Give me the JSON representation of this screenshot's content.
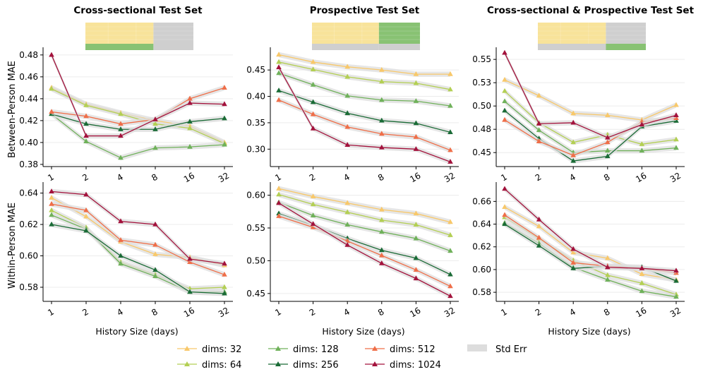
{
  "figure": {
    "ylabel_top": "Between-Person MAE",
    "ylabel_bottom": "Within-Person MAE",
    "xlabel": "History Size (days)"
  },
  "colors": {
    "dims: 32": "#f8c86a",
    "dims: 64": "#b3cf53",
    "dims: 128": "#6fb15a",
    "dims: 256": "#1a6b36",
    "dims: 512": "#ef6e48",
    "dims: 1024": "#a3123c",
    "stderr": "#dddddd",
    "inset_yellow": "#f8e39a",
    "inset_green": "#88c273",
    "inset_gray": "#cfcfcf"
  },
  "legend": {
    "items": [
      "dims: 32",
      "dims: 64",
      "dims: 128",
      "dims: 256",
      "dims: 512",
      "dims: 1024"
    ],
    "stderr_label": "Std Err"
  },
  "chart_data": [
    {
      "type": "line",
      "panel": "top-left",
      "title": "Cross-sectional Test Set",
      "x": [
        1,
        2,
        4,
        8,
        16,
        32
      ],
      "xticklabels": [
        "1",
        "2",
        "4",
        "8",
        "16",
        "32"
      ],
      "xlabel": "History Size (days)",
      "ylabel": "Between-Person MAE",
      "ylim": [
        0.378,
        0.487
      ],
      "yticks": [
        0.38,
        0.4,
        0.42,
        0.44,
        0.46,
        0.48
      ],
      "yticklabels": [
        "0.38",
        "0.40",
        "0.42",
        "0.44",
        "0.46",
        "0.48"
      ],
      "inset": [
        {
          "color": "inset_yellow",
          "share": 0.63,
          "stripe": "inset_green"
        },
        {
          "color": "inset_gray",
          "share": 0.37,
          "stripe": "inset_gray"
        }
      ],
      "series": [
        {
          "name": "dims: 32",
          "values": [
            0.45,
            0.435,
            0.427,
            0.42,
            0.415,
            0.4
          ]
        },
        {
          "name": "dims: 64",
          "values": [
            0.449,
            0.434,
            0.426,
            0.417,
            0.413,
            0.399
          ]
        },
        {
          "name": "dims: 128",
          "values": [
            0.426,
            0.401,
            0.386,
            0.395,
            0.396,
            0.398
          ]
        },
        {
          "name": "dims: 256",
          "values": [
            0.426,
            0.417,
            0.412,
            0.412,
            0.419,
            0.422
          ]
        },
        {
          "name": "dims: 512",
          "values": [
            0.428,
            0.424,
            0.417,
            0.421,
            0.44,
            0.45
          ]
        },
        {
          "name": "dims: 1024",
          "values": [
            0.48,
            0.406,
            0.406,
            0.421,
            0.436,
            0.435
          ]
        }
      ]
    },
    {
      "type": "line",
      "panel": "top-middle",
      "title": "Prospective Test Set",
      "x": [
        1,
        2,
        4,
        8,
        16,
        32
      ],
      "xticklabels": [
        "1",
        "2",
        "4",
        "8",
        "16",
        "32"
      ],
      "xlabel": "History Size (days)",
      "ylabel": "",
      "ylim": [
        0.267,
        0.493
      ],
      "yticks": [
        0.3,
        0.35,
        0.4,
        0.45
      ],
      "yticklabels": [
        "0.30",
        "0.35",
        "0.40",
        "0.45"
      ],
      "inset": [
        {
          "color": "inset_yellow",
          "share": 0.62,
          "stripe": "inset_gray"
        },
        {
          "color": "inset_green",
          "share": 0.38,
          "stripe": "inset_gray"
        }
      ],
      "series": [
        {
          "name": "dims: 32",
          "values": [
            0.479,
            0.465,
            0.456,
            0.45,
            0.442,
            0.442
          ]
        },
        {
          "name": "dims: 64",
          "values": [
            0.465,
            0.451,
            0.437,
            0.428,
            0.425,
            0.413
          ]
        },
        {
          "name": "dims: 128",
          "values": [
            0.444,
            0.422,
            0.401,
            0.393,
            0.391,
            0.382
          ]
        },
        {
          "name": "dims: 256",
          "values": [
            0.411,
            0.389,
            0.368,
            0.354,
            0.349,
            0.332
          ]
        },
        {
          "name": "dims: 512",
          "values": [
            0.393,
            0.366,
            0.342,
            0.329,
            0.323,
            0.298
          ]
        },
        {
          "name": "dims: 1024",
          "values": [
            0.455,
            0.339,
            0.308,
            0.303,
            0.3,
            0.276
          ]
        }
      ]
    },
    {
      "type": "line",
      "panel": "top-right",
      "title": "Cross-sectional & Prospective Test Set",
      "x": [
        1,
        2,
        4,
        8,
        16,
        32
      ],
      "xticklabels": [
        "1",
        "2",
        "4",
        "8",
        "16",
        "32"
      ],
      "xlabel": "History Size (days)",
      "ylabel": "",
      "ylim": [
        0.435,
        0.563
      ],
      "yticks": [
        0.45,
        0.475,
        0.5,
        0.525,
        0.55
      ],
      "yticklabels": [
        "0.45",
        "0.48",
        "0.50",
        "0.53",
        "0.55"
      ],
      "inset": [
        {
          "color": "inset_yellow",
          "share": 0.63,
          "stripe": "inset_gray"
        },
        {
          "color": "inset_gray",
          "share": 0.37,
          "stripe": "inset_green"
        }
      ],
      "series": [
        {
          "name": "dims: 32",
          "values": [
            0.528,
            0.511,
            0.492,
            0.49,
            0.485,
            0.501
          ]
        },
        {
          "name": "dims: 64",
          "values": [
            0.516,
            0.482,
            0.461,
            0.469,
            0.459,
            0.464
          ]
        },
        {
          "name": "dims: 128",
          "values": [
            0.505,
            0.474,
            0.45,
            0.452,
            0.452,
            0.455
          ]
        },
        {
          "name": "dims: 256",
          "values": [
            0.495,
            0.465,
            0.441,
            0.446,
            0.478,
            0.484
          ]
        },
        {
          "name": "dims: 512",
          "values": [
            0.485,
            0.462,
            0.447,
            0.461,
            0.483,
            0.487
          ]
        },
        {
          "name": "dims: 1024",
          "values": [
            0.557,
            0.481,
            0.482,
            0.466,
            0.48,
            0.49
          ]
        }
      ]
    },
    {
      "type": "line",
      "panel": "bottom-left",
      "title": "",
      "x": [
        1,
        2,
        4,
        8,
        16,
        32
      ],
      "xticklabels": [
        "1",
        "2",
        "4",
        "8",
        "16",
        "32"
      ],
      "xlabel": "History Size (days)",
      "ylabel": "Within-Person MAE",
      "ylim": [
        0.571,
        0.647
      ],
      "yticks": [
        0.58,
        0.6,
        0.62,
        0.64
      ],
      "yticklabels": [
        "0.58",
        "0.60",
        "0.62",
        "0.64"
      ],
      "inset": null,
      "series": [
        {
          "name": "dims: 32",
          "values": [
            0.637,
            0.625,
            0.609,
            0.601,
            0.599,
            0.594
          ]
        },
        {
          "name": "dims: 64",
          "values": [
            0.629,
            0.618,
            0.596,
            0.588,
            0.579,
            0.58
          ]
        },
        {
          "name": "dims: 128",
          "values": [
            0.626,
            0.617,
            0.595,
            0.587,
            0.577,
            0.577
          ]
        },
        {
          "name": "dims: 256",
          "values": [
            0.62,
            0.616,
            0.6,
            0.591,
            0.577,
            0.576
          ]
        },
        {
          "name": "dims: 512",
          "values": [
            0.633,
            0.629,
            0.61,
            0.607,
            0.596,
            0.588
          ]
        },
        {
          "name": "dims: 1024",
          "values": [
            0.641,
            0.639,
            0.622,
            0.62,
            0.598,
            0.595
          ]
        }
      ]
    },
    {
      "type": "line",
      "panel": "bottom-middle",
      "title": "",
      "x": [
        1,
        2,
        4,
        8,
        16,
        32
      ],
      "xticklabels": [
        "1",
        "2",
        "4",
        "8",
        "16",
        "32"
      ],
      "xlabel": "History Size (days)",
      "ylabel": "",
      "ylim": [
        0.438,
        0.62
      ],
      "yticks": [
        0.45,
        0.5,
        0.55,
        0.6
      ],
      "yticklabels": [
        "0.45",
        "0.50",
        "0.55",
        "0.60"
      ],
      "inset": null,
      "series": [
        {
          "name": "dims: 32",
          "values": [
            0.61,
            0.598,
            0.588,
            0.578,
            0.572,
            0.559
          ]
        },
        {
          "name": "dims: 64",
          "values": [
            0.601,
            0.586,
            0.574,
            0.562,
            0.555,
            0.539
          ]
        },
        {
          "name": "dims: 128",
          "values": [
            0.589,
            0.569,
            0.555,
            0.544,
            0.534,
            0.515
          ]
        },
        {
          "name": "dims: 256",
          "values": [
            0.572,
            0.554,
            0.534,
            0.516,
            0.504,
            0.479
          ]
        },
        {
          "name": "dims: 512",
          "values": [
            0.568,
            0.551,
            0.53,
            0.508,
            0.486,
            0.461
          ]
        },
        {
          "name": "dims: 1024",
          "values": [
            0.588,
            0.556,
            0.524,
            0.496,
            0.473,
            0.446
          ]
        }
      ]
    },
    {
      "type": "line",
      "panel": "bottom-right",
      "title": "",
      "x": [
        1,
        2,
        4,
        8,
        16,
        32
      ],
      "xticklabels": [
        "1",
        "2",
        "4",
        "8",
        "16",
        "32"
      ],
      "xlabel": "History Size (days)",
      "ylabel": "",
      "ylim": [
        0.572,
        0.677
      ],
      "yticks": [
        0.58,
        0.6,
        0.62,
        0.64,
        0.66
      ],
      "yticklabels": [
        "0.58",
        "0.60",
        "0.62",
        "0.64",
        "0.66"
      ],
      "inset": null,
      "series": [
        {
          "name": "dims: 32",
          "values": [
            0.655,
            0.638,
            0.615,
            0.61,
            0.596,
            0.591
          ]
        },
        {
          "name": "dims: 64",
          "values": [
            0.646,
            0.627,
            0.608,
            0.595,
            0.588,
            0.578
          ]
        },
        {
          "name": "dims: 128",
          "values": [
            0.641,
            0.623,
            0.602,
            0.591,
            0.581,
            0.576
          ]
        },
        {
          "name": "dims: 256",
          "values": [
            0.64,
            0.621,
            0.601,
            0.603,
            0.602,
            0.59
          ]
        },
        {
          "name": "dims: 512",
          "values": [
            0.648,
            0.628,
            0.606,
            0.603,
            0.601,
            0.597
          ]
        },
        {
          "name": "dims: 1024",
          "values": [
            0.671,
            0.644,
            0.618,
            0.602,
            0.601,
            0.599
          ]
        }
      ]
    }
  ]
}
